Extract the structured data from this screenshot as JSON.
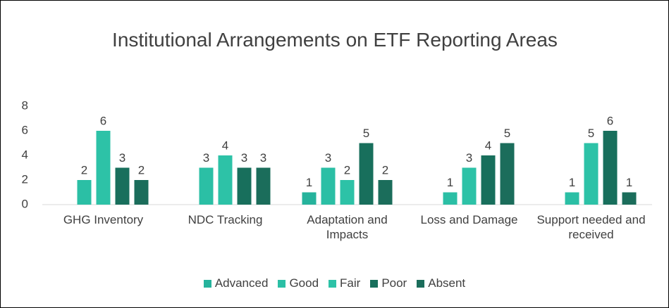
{
  "chart_data": {
    "type": "bar",
    "title": "Institutional Arrangements on ETF Reporting Areas",
    "categories": [
      "GHG Inventory",
      "NDC Tracking",
      "Adaptation and Impacts",
      "Loss and Damage",
      "Support needed and received"
    ],
    "series": [
      {
        "name": "Advanced",
        "color": "#26b39c",
        "values": [
          null,
          null,
          1,
          null,
          null
        ]
      },
      {
        "name": "Good",
        "color": "#2bbfa5",
        "values": [
          2,
          3,
          3,
          1,
          1
        ]
      },
      {
        "name": "Fair",
        "color": "#2dc2a7",
        "values": [
          6,
          4,
          2,
          3,
          5
        ]
      },
      {
        "name": "Poor",
        "color": "#186f5c",
        "values": [
          3,
          3,
          5,
          4,
          6
        ]
      },
      {
        "name": "Absent",
        "color": "#1b6d5b",
        "values": [
          2,
          3,
          2,
          5,
          1
        ]
      }
    ],
    "ylim": [
      0,
      8
    ],
    "yticks": [
      0,
      2,
      4,
      6,
      8
    ],
    "grid": false,
    "legend": "bottom"
  }
}
